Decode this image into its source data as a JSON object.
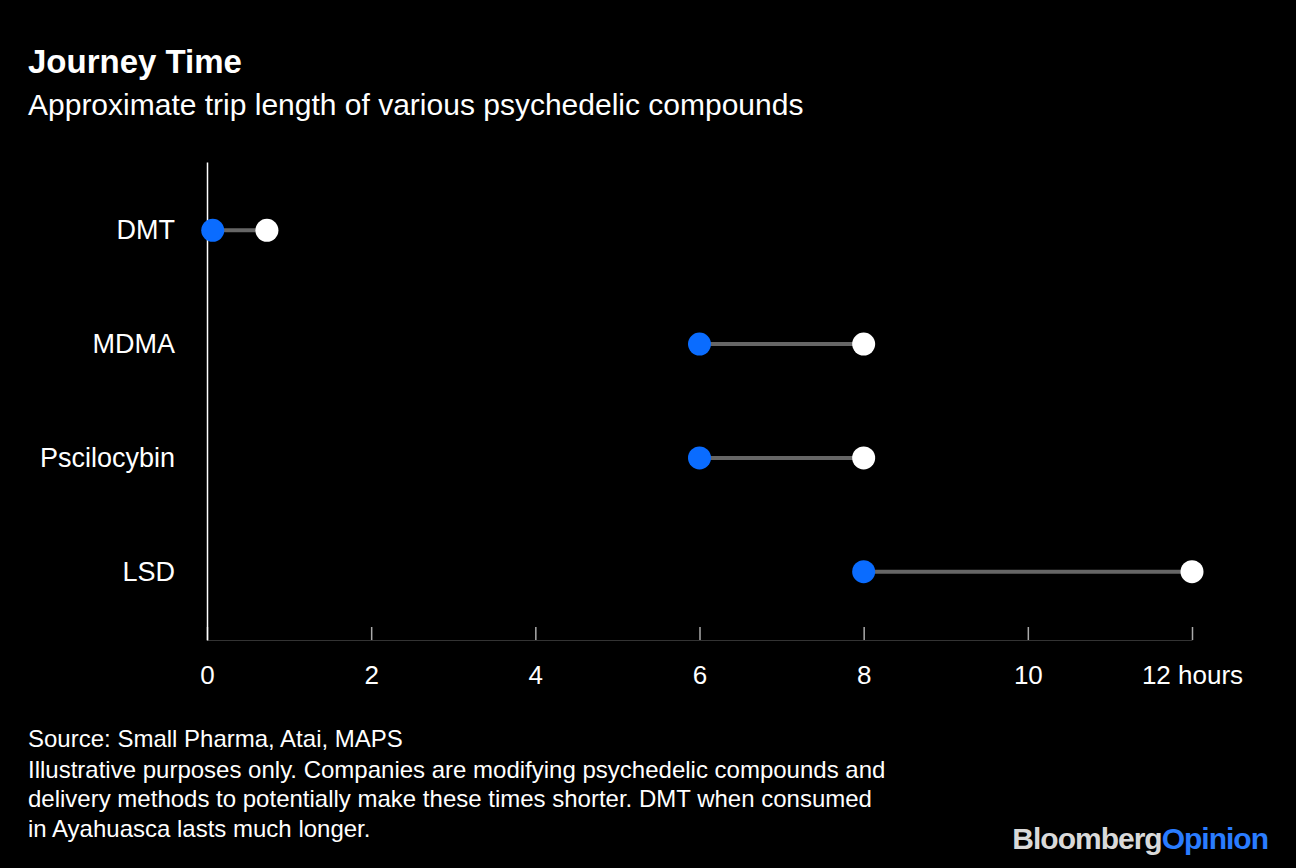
{
  "chart_data": {
    "type": "dumbbell",
    "title": "Journey Time",
    "subtitle": "Approximate trip length of various psychedelic compounds",
    "orientation": "horizontal",
    "categories": [
      "DMT",
      "MDMA",
      "Pscilocybin",
      "LSD"
    ],
    "series": [
      {
        "color": "#0a6cff",
        "marker": "circle",
        "values": [
          0.07,
          6,
          6,
          8
        ]
      },
      {
        "color": "#ffffff",
        "marker": "circle",
        "values": [
          0.73,
          8,
          8,
          12
        ]
      }
    ],
    "xlim": [
      0,
      12
    ],
    "xticks": [
      0,
      2,
      4,
      6,
      8,
      10,
      {
        "value": 12,
        "label": "12 hours"
      }
    ],
    "notes": [
      "Source: Small Pharma, Atai, MAPS",
      "Illustrative purposes only. Companies are modifying psychedelic compounds and",
      "delivery methods to potentially make these times shorter. DMT when consumed",
      "in Ayahuasca lasts much longer."
    ],
    "brand": [
      "Bloomberg",
      "Opinion"
    ]
  }
}
